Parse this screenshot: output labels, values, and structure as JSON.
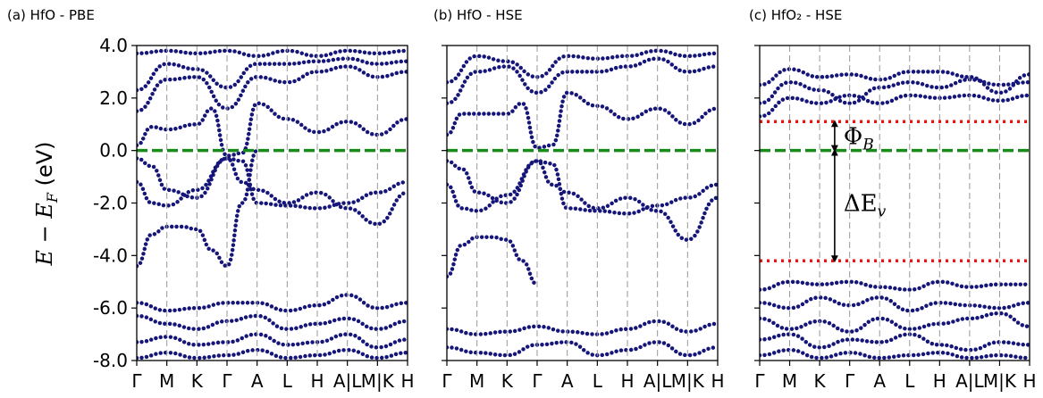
{
  "chart_data": [
    {
      "type": "line",
      "title": "(a) HfO - PBE",
      "ylabel": "E − E_F (eV)",
      "ylim": [
        -8.0,
        4.0
      ],
      "yticks": [
        "4.0",
        "2.0",
        "0.0",
        "-2.0",
        "-4.0",
        "-6.0",
        "-8.0"
      ],
      "kpath": [
        "Γ",
        "M",
        "K",
        "Γ",
        "A",
        "L",
        "H",
        "A|L",
        "M|K",
        "H"
      ],
      "fermi_level": 0.0,
      "series": [
        {
          "x": [
            0,
            1,
            2,
            3,
            4,
            5,
            6,
            7,
            8,
            9
          ],
          "y": [
            1.5,
            2.7,
            2.8,
            1.6,
            2.8,
            2.6,
            3.0,
            3.2,
            2.8,
            3.0
          ]
        },
        {
          "x": [
            0,
            1,
            2,
            3,
            4,
            5,
            6,
            7,
            8,
            9
          ],
          "y": [
            2.3,
            3.3,
            3.1,
            2.4,
            3.3,
            3.3,
            3.4,
            3.5,
            3.3,
            3.4
          ]
        },
        {
          "x": [
            0,
            1,
            2,
            3,
            4,
            5,
            6,
            7,
            8,
            9
          ],
          "y": [
            3.7,
            3.8,
            3.7,
            3.8,
            3.6,
            3.8,
            3.6,
            3.8,
            3.7,
            3.8
          ]
        },
        {
          "x": [
            0,
            0.5,
            1,
            2,
            2.5,
            3,
            3.5,
            4,
            5,
            6,
            7,
            8,
            9
          ],
          "y": [
            0.2,
            0.9,
            0.8,
            1.0,
            1.6,
            -0.2,
            -0.1,
            1.8,
            1.2,
            0.7,
            1.1,
            0.6,
            1.2
          ]
        },
        {
          "x": [
            0,
            0.5,
            1,
            2,
            3,
            3.5,
            4,
            5,
            6,
            7,
            8,
            9
          ],
          "y": [
            -0.3,
            -0.6,
            -1.5,
            -1.8,
            -0.3,
            -0.4,
            -2.0,
            -2.1,
            -2.2,
            -2.0,
            -1.6,
            -1.2
          ]
        },
        {
          "x": [
            0,
            0.5,
            1,
            2,
            3,
            3.5,
            4,
            5,
            6,
            7,
            8,
            9
          ],
          "y": [
            -1.2,
            -2.0,
            -2.1,
            -1.5,
            -0.3,
            -1.2,
            -1.5,
            -2.0,
            -1.6,
            -2.2,
            -2.8,
            -1.6
          ]
        },
        {
          "x": [
            0,
            0.5,
            1,
            1.5,
            2,
            2.5,
            3,
            3.5,
            4
          ],
          "y": [
            -4.4,
            -3.2,
            -2.9,
            -2.9,
            -3.0,
            -3.8,
            -4.4,
            -2.0,
            0.0
          ]
        },
        {
          "x": [
            0,
            1,
            2,
            3,
            4,
            5,
            6,
            7,
            8,
            9
          ],
          "y": [
            -5.8,
            -6.1,
            -6.0,
            -5.8,
            -5.8,
            -6.1,
            -5.9,
            -5.5,
            -6.0,
            -5.8
          ]
        },
        {
          "x": [
            0,
            1,
            2,
            3,
            4,
            5,
            6,
            7,
            8,
            9
          ],
          "y": [
            -6.3,
            -6.6,
            -6.8,
            -6.5,
            -6.3,
            -6.8,
            -6.6,
            -6.4,
            -6.8,
            -6.5
          ]
        },
        {
          "x": [
            0,
            1,
            2,
            3,
            4,
            5,
            6,
            7,
            8,
            9
          ],
          "y": [
            -7.3,
            -7.1,
            -7.4,
            -7.3,
            -7.0,
            -7.4,
            -7.3,
            -7.0,
            -7.5,
            -7.2
          ]
        },
        {
          "x": [
            0,
            1,
            2,
            3,
            4,
            5,
            6,
            7,
            8,
            9
          ],
          "y": [
            -7.9,
            -7.7,
            -7.9,
            -7.8,
            -7.6,
            -7.9,
            -7.8,
            -7.6,
            -7.9,
            -7.7
          ]
        }
      ]
    },
    {
      "type": "line",
      "title": "(b) HfO - HSE",
      "ylim": [
        -8.0,
        4.0
      ],
      "kpath": [
        "Γ",
        "M",
        "K",
        "Γ",
        "A",
        "L",
        "H",
        "A|L",
        "M|K",
        "H"
      ],
      "fermi_level": 0.0,
      "series": [
        {
          "x": [
            0,
            1,
            2,
            3,
            4,
            5,
            6,
            7,
            8,
            9
          ],
          "y": [
            1.8,
            3.0,
            3.2,
            2.2,
            3.0,
            3.0,
            3.2,
            3.5,
            3.0,
            3.2
          ]
        },
        {
          "x": [
            0,
            1,
            2,
            3,
            4,
            5,
            6,
            7,
            8,
            9
          ],
          "y": [
            2.6,
            3.6,
            3.4,
            2.8,
            3.6,
            3.5,
            3.6,
            3.8,
            3.6,
            3.7
          ]
        },
        {
          "x": [
            0,
            0.5,
            1,
            2,
            2.5,
            3,
            3.5,
            4,
            5,
            6,
            7,
            8,
            9
          ],
          "y": [
            0.6,
            1.4,
            1.4,
            1.4,
            1.8,
            0.1,
            0.2,
            2.2,
            1.7,
            1.2,
            1.6,
            1.0,
            1.6
          ]
        },
        {
          "x": [
            0,
            0.5,
            1,
            2,
            3,
            3.5,
            4,
            5,
            6,
            7,
            8,
            9
          ],
          "y": [
            -0.4,
            -0.7,
            -1.6,
            -2.0,
            -0.4,
            -0.5,
            -2.2,
            -2.3,
            -2.4,
            -2.1,
            -1.8,
            -1.3
          ]
        },
        {
          "x": [
            0,
            0.5,
            1,
            2,
            3,
            3.5,
            4,
            5,
            6,
            7,
            8,
            9
          ],
          "y": [
            -1.3,
            -2.2,
            -2.3,
            -1.7,
            -0.4,
            -1.3,
            -1.6,
            -2.2,
            -1.8,
            -2.3,
            -3.4,
            -1.8
          ]
        },
        {
          "x": [
            0,
            0.5,
            1,
            1.5,
            2,
            2.5,
            3
          ],
          "y": [
            -4.8,
            -3.6,
            -3.3,
            -3.3,
            -3.4,
            -4.2,
            -5.1
          ]
        },
        {
          "x": [
            0,
            1,
            2,
            3,
            4,
            5,
            6,
            7,
            8,
            9
          ],
          "y": [
            -6.8,
            -7.0,
            -6.9,
            -6.7,
            -6.9,
            -7.0,
            -6.8,
            -6.5,
            -6.9,
            -6.6
          ]
        },
        {
          "x": [
            0,
            1,
            2,
            3,
            4,
            5,
            6,
            7,
            8,
            9
          ],
          "y": [
            -7.5,
            -7.7,
            -7.8,
            -7.4,
            -7.3,
            -7.8,
            -7.6,
            -7.3,
            -7.8,
            -7.5
          ]
        }
      ]
    },
    {
      "type": "line",
      "title": "(c) HfO₂ - HSE",
      "ylim": [
        -8.0,
        4.0
      ],
      "kpath": [
        "Γ",
        "M",
        "K",
        "Γ",
        "A",
        "L",
        "H",
        "A|L",
        "M|K",
        "H"
      ],
      "fermi_level": 0.0,
      "reference_lines": [
        1.1,
        -4.2
      ],
      "annotations": [
        "Φ_B",
        "ΔE_v"
      ],
      "series": [
        {
          "x": [
            0,
            1,
            2,
            3,
            4,
            5,
            6,
            7,
            8,
            9
          ],
          "y": [
            1.3,
            2.0,
            1.8,
            2.1,
            1.8,
            2.1,
            2.0,
            2.1,
            1.9,
            2.1
          ]
        },
        {
          "x": [
            0,
            1,
            2,
            3,
            4,
            5,
            6,
            7,
            8,
            9
          ],
          "y": [
            1.8,
            2.6,
            2.3,
            1.8,
            2.4,
            2.6,
            2.4,
            2.7,
            2.5,
            2.6
          ]
        },
        {
          "x": [
            0,
            1,
            2,
            3,
            4,
            5,
            6,
            7,
            8,
            9
          ],
          "y": [
            2.5,
            3.1,
            2.8,
            2.9,
            2.7,
            3.0,
            3.0,
            2.8,
            2.2,
            2.9
          ]
        },
        {
          "x": [
            0,
            1,
            2,
            3,
            4,
            5,
            6,
            7,
            8,
            9
          ],
          "y": [
            -5.3,
            -5.0,
            -5.1,
            -5.0,
            -5.2,
            -5.3,
            -5.0,
            -5.2,
            -5.1,
            -5.1
          ]
        },
        {
          "x": [
            0,
            1,
            2,
            3,
            4,
            5,
            6,
            7,
            8,
            9
          ],
          "y": [
            -5.8,
            -6.0,
            -5.6,
            -5.9,
            -5.6,
            -6.1,
            -5.8,
            -5.9,
            -6.0,
            -5.8
          ]
        },
        {
          "x": [
            0,
            1,
            2,
            3,
            4,
            5,
            6,
            7,
            8,
            9
          ],
          "y": [
            -6.4,
            -6.8,
            -6.5,
            -6.9,
            -6.4,
            -6.8,
            -6.6,
            -6.4,
            -6.2,
            -6.7
          ]
        },
        {
          "x": [
            0,
            1,
            2,
            3,
            4,
            5,
            6,
            7,
            8,
            9
          ],
          "y": [
            -7.2,
            -7.0,
            -7.5,
            -7.2,
            -7.3,
            -7.0,
            -7.4,
            -7.6,
            -7.3,
            -7.4
          ]
        },
        {
          "x": [
            0,
            1,
            2,
            3,
            4,
            5,
            6,
            7,
            8,
            9
          ],
          "y": [
            -7.8,
            -7.6,
            -7.9,
            -7.7,
            -7.9,
            -7.8,
            -7.7,
            -7.9,
            -7.8,
            -7.9
          ]
        }
      ]
    }
  ],
  "style": {
    "band_color": "#16167a",
    "fermi_color": "#1a8a1a",
    "ref_color": "#ee1111",
    "grid_color": "#999999"
  }
}
